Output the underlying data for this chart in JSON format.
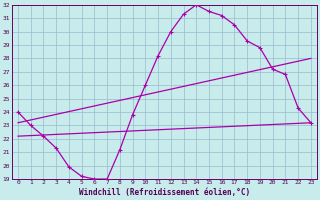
{
  "xlabel": "Windchill (Refroidissement éolien,°C)",
  "xlim": [
    -0.5,
    23.5
  ],
  "ylim": [
    19,
    32
  ],
  "yticks": [
    19,
    20,
    21,
    22,
    23,
    24,
    25,
    26,
    27,
    28,
    29,
    30,
    31,
    32
  ],
  "xticks": [
    0,
    1,
    2,
    3,
    4,
    5,
    6,
    7,
    8,
    9,
    10,
    11,
    12,
    13,
    14,
    15,
    16,
    17,
    18,
    19,
    20,
    21,
    22,
    23
  ],
  "bg_color": "#c8ecec",
  "grid_color": "#99bbcc",
  "line_color": "#aa00aa",
  "series": [
    {
      "x": [
        0,
        1,
        2,
        3,
        4,
        5,
        6,
        7,
        8,
        9,
        10,
        11,
        12,
        13,
        14,
        15,
        16,
        17,
        18,
        19,
        20,
        21,
        22,
        23
      ],
      "y": [
        24.0,
        23.0,
        22.2,
        21.3,
        19.9,
        19.2,
        19.0,
        19.0,
        21.2,
        23.8,
        26.0,
        28.2,
        30.0,
        31.3,
        32.0,
        31.5,
        31.2,
        30.5,
        29.3,
        28.8,
        27.2,
        26.8,
        24.3,
        23.2
      ]
    },
    {
      "x": [
        0,
        23
      ],
      "y": [
        23.2,
        28.0
      ]
    },
    {
      "x": [
        0,
        23
      ],
      "y": [
        22.2,
        23.2
      ]
    }
  ]
}
